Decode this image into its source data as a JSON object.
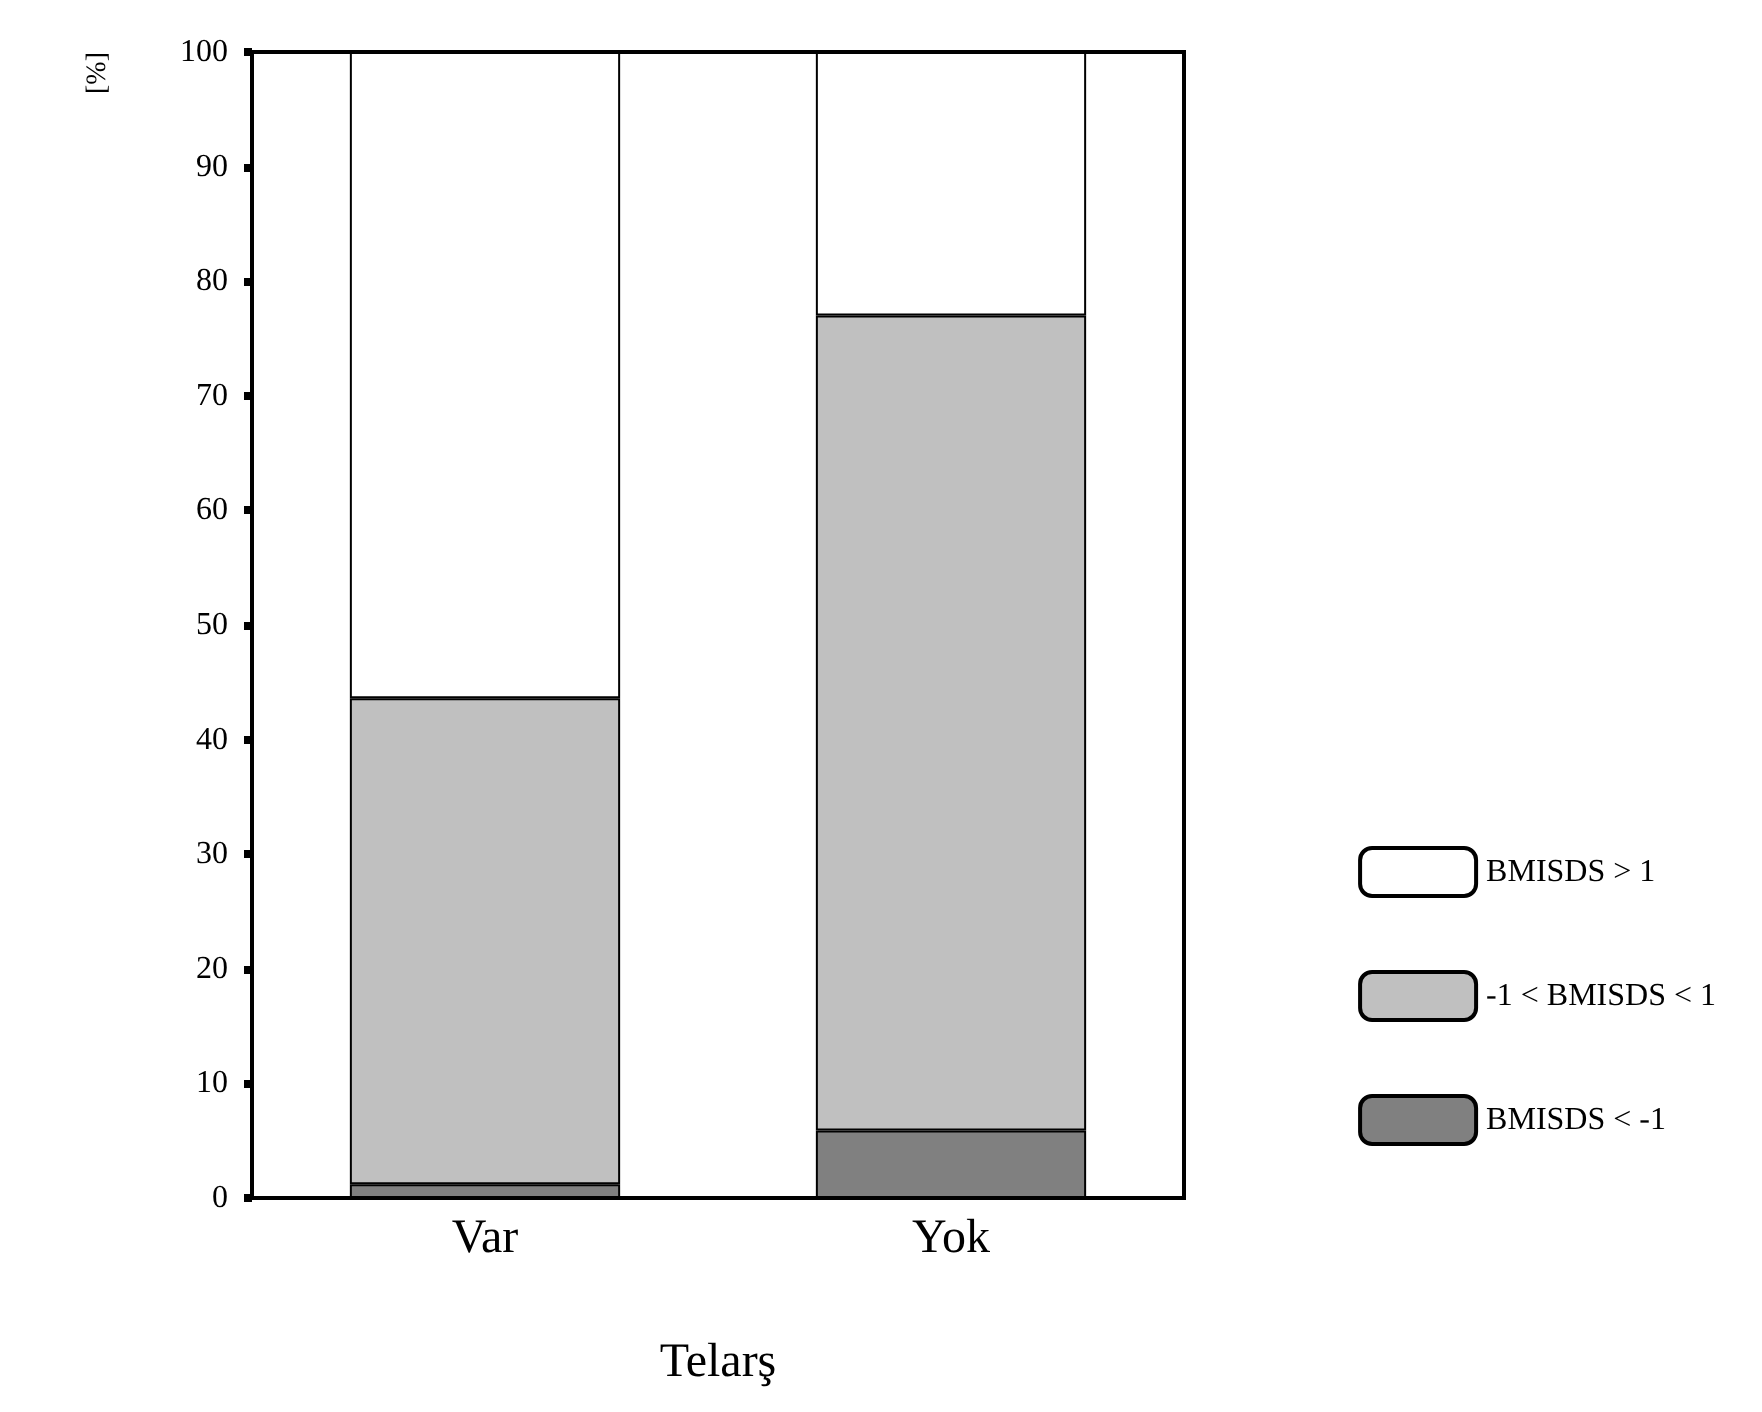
{
  "chart_data": {
    "type": "bar",
    "stacked": true,
    "xlabel": "Telarş",
    "ylabel": "[%]",
    "categories": [
      "Var",
      "Yok"
    ],
    "series": [
      {
        "name": "BMISDS < -1",
        "color": "#808080",
        "values": [
          1.2,
          5.9
        ]
      },
      {
        "name": "-1 < BMISDS < 1",
        "color": "#c0c0c0",
        "values": [
          42.4,
          71.1
        ]
      },
      {
        "name": "BMISDS > 1",
        "color": "#ffffff",
        "values": [
          56.4,
          23.0
        ]
      }
    ],
    "ylim": [
      0,
      100
    ],
    "yticks": [
      0,
      10,
      20,
      30,
      40,
      50,
      60,
      70,
      80,
      90,
      100
    ],
    "grid": false,
    "legend": "right"
  }
}
